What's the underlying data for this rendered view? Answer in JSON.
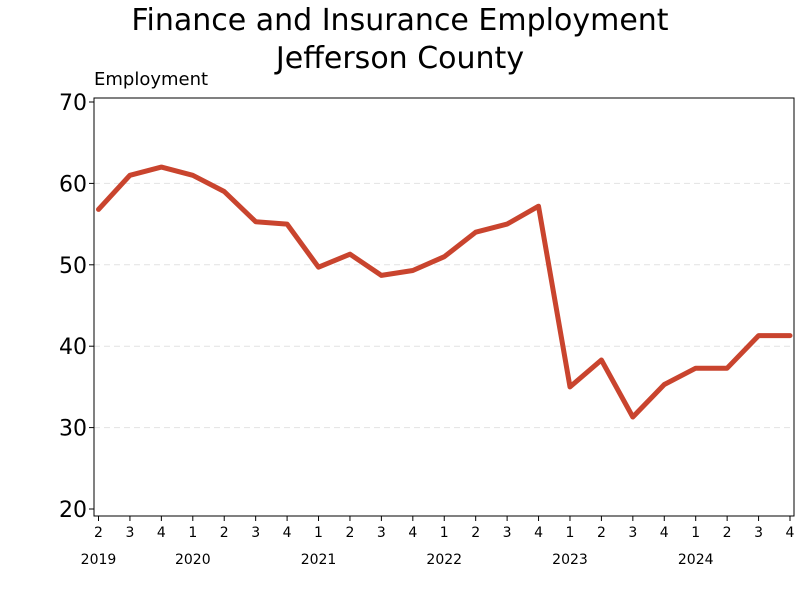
{
  "chart_data": {
    "type": "line",
    "title": "Finance and Insurance Employment",
    "subtitle": "Jefferson County",
    "ylabel": "Employment",
    "xlabel": "",
    "ylim": [
      20,
      70
    ],
    "yticks": [
      20,
      30,
      40,
      50,
      60,
      70
    ],
    "grid": "horizontal dashed",
    "categories": [
      "2",
      "3",
      "4",
      "1",
      "2",
      "3",
      "4",
      "1",
      "2",
      "3",
      "4",
      "1",
      "2",
      "3",
      "4",
      "1",
      "2",
      "3",
      "4",
      "1",
      "2",
      "3",
      "4"
    ],
    "years": [
      {
        "label": "2019",
        "index": 0
      },
      {
        "label": "2020",
        "index": 3
      },
      {
        "label": "2021",
        "index": 7
      },
      {
        "label": "2022",
        "index": 11
      },
      {
        "label": "2023",
        "index": 15
      },
      {
        "label": "2024",
        "index": 19
      }
    ],
    "series": [
      {
        "color": "#c9442e",
        "values": [
          56.8,
          61.0,
          62.0,
          61.0,
          59.0,
          55.3,
          55.0,
          49.7,
          51.3,
          48.7,
          49.3,
          51.0,
          54.0,
          55.0,
          57.2,
          35.0,
          38.3,
          31.3,
          35.3,
          37.3,
          37.3,
          41.3,
          41.3
        ]
      }
    ]
  }
}
